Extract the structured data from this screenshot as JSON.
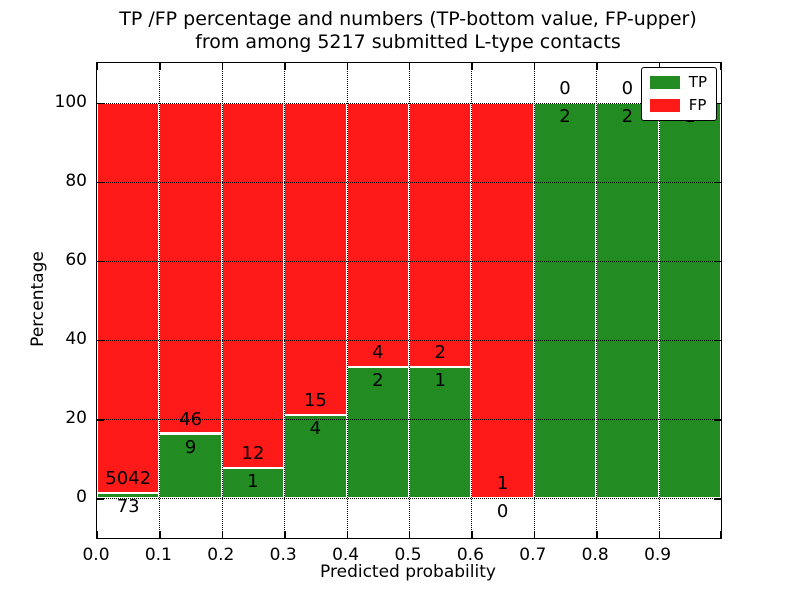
{
  "chart_data": {
    "type": "bar",
    "stacked": true,
    "title_line1": "TP /FP percentage and numbers (TP-bottom value, FP-upper)",
    "title_line2": "from among 5217 submitted L-type contacts",
    "xlabel": "Predicted probability",
    "ylabel": "Percentage",
    "x_tick_labels": [
      "0.0",
      "0.1",
      "0.2",
      "0.3",
      "0.4",
      "0.5",
      "0.6",
      "0.7",
      "0.8",
      "0.9"
    ],
    "y_tick_values": [
      0,
      20,
      40,
      60,
      80,
      100
    ],
    "xlim": [
      0.0,
      1.0
    ],
    "ylim": [
      -10,
      110
    ],
    "grid": "dotted",
    "colors": {
      "tp": "#228B22",
      "fp": "#FF1A1A"
    },
    "legend": {
      "position": "upper right",
      "entries": [
        {
          "label": "TP",
          "color": "#228B22"
        },
        {
          "label": "FP",
          "color": "#FF1A1A"
        }
      ]
    },
    "bins": [
      {
        "x_start": 0.0,
        "x_end": 0.1,
        "tp": 73,
        "fp": 5042,
        "tp_pct": 1.4,
        "tp_label": "73",
        "fp_label": "5042"
      },
      {
        "x_start": 0.1,
        "x_end": 0.2,
        "tp": 9,
        "fp": 46,
        "tp_pct": 16.4,
        "tp_label": "9",
        "fp_label": "46"
      },
      {
        "x_start": 0.2,
        "x_end": 0.3,
        "tp": 1,
        "fp": 12,
        "tp_pct": 7.7,
        "tp_label": "1",
        "fp_label": "12"
      },
      {
        "x_start": 0.3,
        "x_end": 0.4,
        "tp": 4,
        "fp": 15,
        "tp_pct": 21.1,
        "tp_label": "4",
        "fp_label": "15"
      },
      {
        "x_start": 0.4,
        "x_end": 0.5,
        "tp": 2,
        "fp": 4,
        "tp_pct": 33.3,
        "tp_label": "2",
        "fp_label": "4"
      },
      {
        "x_start": 0.5,
        "x_end": 0.6,
        "tp": 1,
        "fp": 2,
        "tp_pct": 33.3,
        "tp_label": "1",
        "fp_label": "2"
      },
      {
        "x_start": 0.6,
        "x_end": 0.7,
        "tp": 0,
        "fp": 1,
        "tp_pct": 0,
        "tp_label": "0",
        "fp_label": "1"
      },
      {
        "x_start": 0.7,
        "x_end": 0.8,
        "tp": 2,
        "fp": 0,
        "tp_pct": 100,
        "tp_label": "2",
        "fp_label": "0"
      },
      {
        "x_start": 0.8,
        "x_end": 0.9,
        "tp": 2,
        "fp": 0,
        "tp_pct": 100,
        "tp_label": "2",
        "fp_label": "0"
      },
      {
        "x_start": 0.9,
        "x_end": 1.0,
        "tp": 1,
        "fp": null,
        "tp_pct": 100,
        "tp_label": "1",
        "fp_label": null
      }
    ]
  }
}
